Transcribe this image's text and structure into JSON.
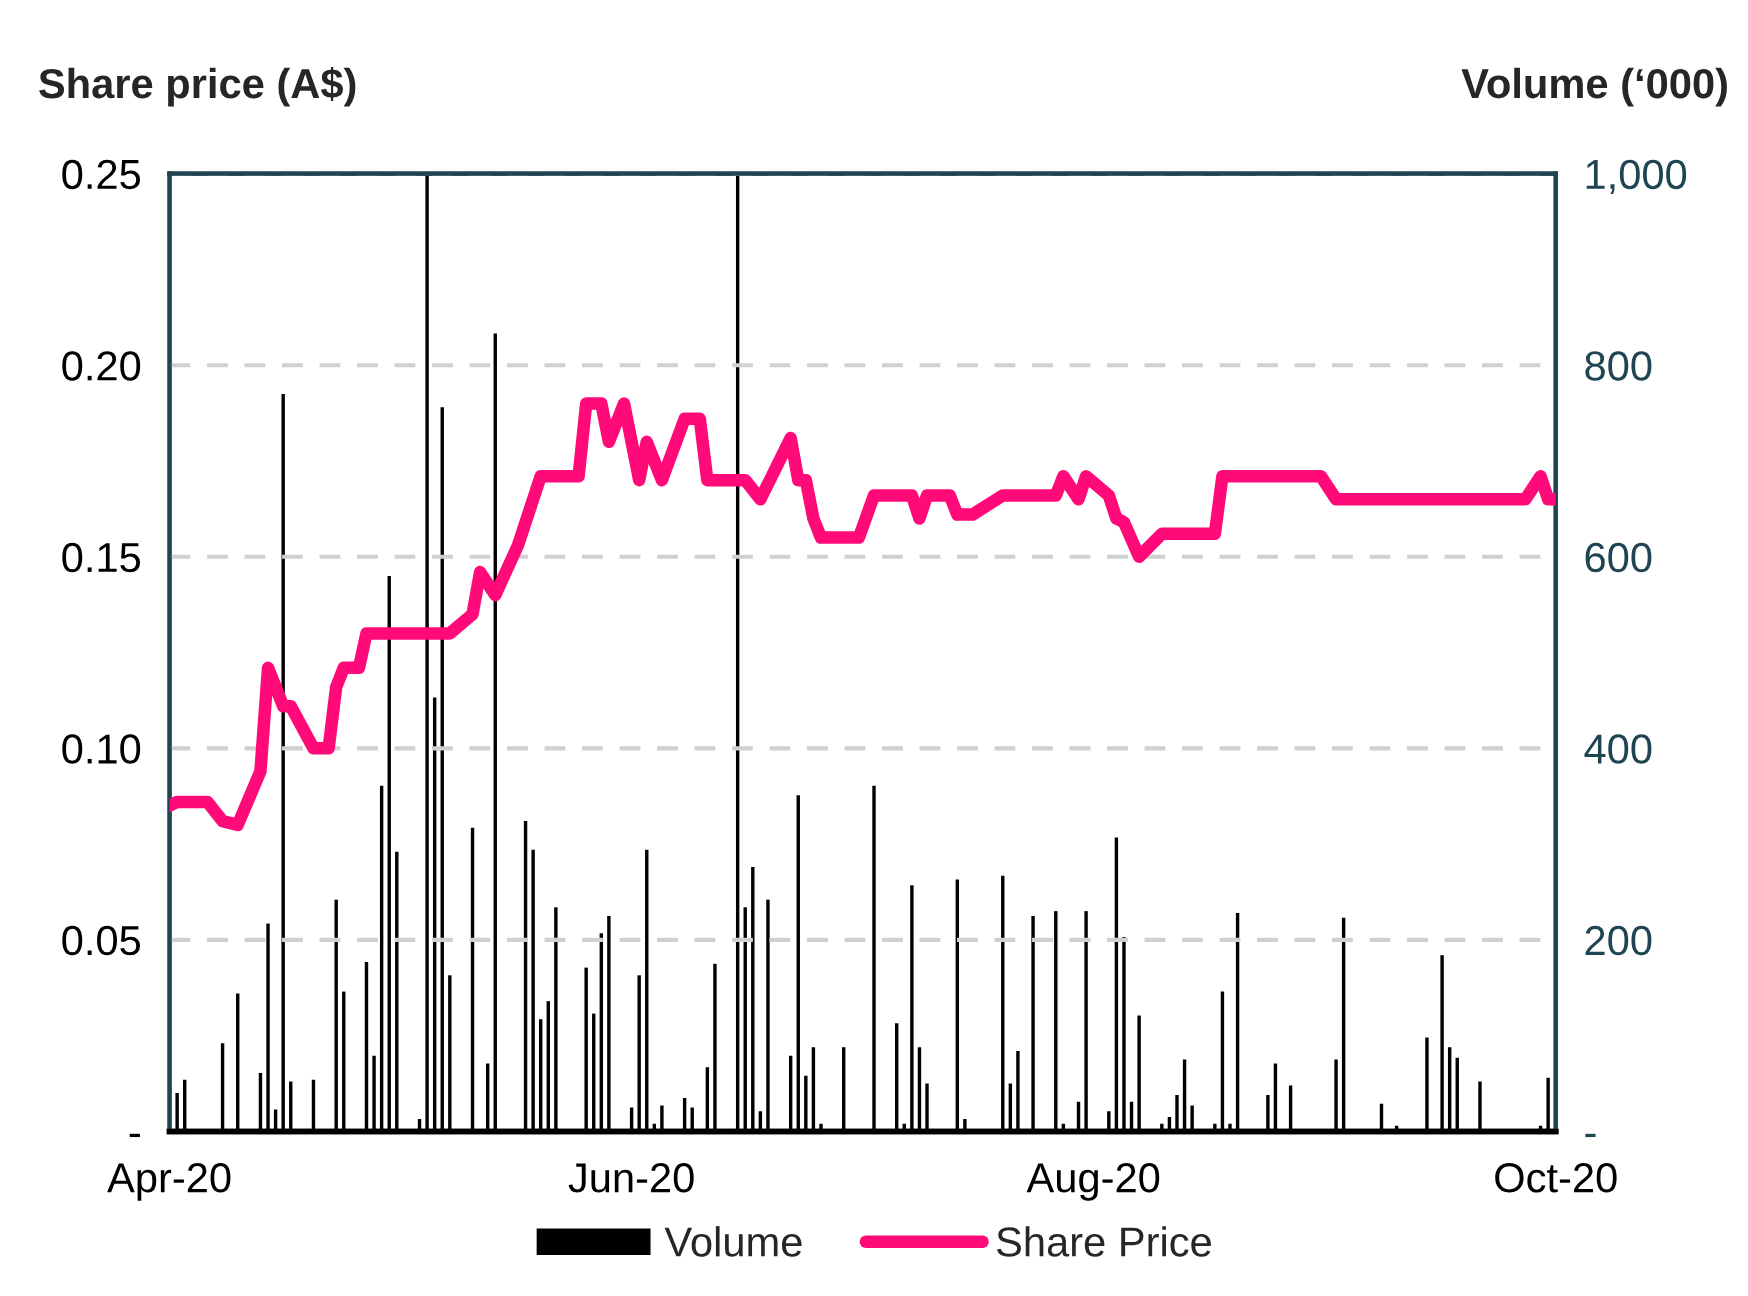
{
  "chart_data": {
    "type": "line",
    "ylabel": "Share price (A$)",
    "y2label": "Volume (‘000)",
    "xlim": [
      "2020-04-01",
      "2020-10-01"
    ],
    "xticks": [
      {
        "value": "2020-04-01",
        "label": "Apr-20"
      },
      {
        "value": "2020-06-01",
        "label": "Jun-20"
      },
      {
        "value": "2020-08-01",
        "label": "Aug-20"
      },
      {
        "value": "2020-10-01",
        "label": "Oct-20"
      }
    ],
    "ylim": [
      0,
      0.25
    ],
    "yticks": [
      {
        "value": 0,
        "label": "-"
      },
      {
        "value": 0.05,
        "label": "0.05"
      },
      {
        "value": 0.1,
        "label": "0.10"
      },
      {
        "value": 0.15,
        "label": "0.15"
      },
      {
        "value": 0.2,
        "label": "0.20"
      },
      {
        "value": 0.25,
        "label": "0.25"
      }
    ],
    "y2lim": [
      0,
      1000
    ],
    "y2ticks": [
      {
        "value": 0,
        "label": "-"
      },
      200,
      400,
      600,
      800,
      {
        "value": 1000,
        "label": "1,000"
      }
    ],
    "grid": "y",
    "legend": "bottom",
    "line_style": "solid",
    "series": [
      {
        "name": "Volume",
        "type": "bar",
        "axis": "y2",
        "color": "#000000",
        "x": [
          "2020-04-02",
          "2020-04-03",
          "2020-04-08",
          "2020-04-10",
          "2020-04-13",
          "2020-04-14",
          "2020-04-15",
          "2020-04-16",
          "2020-04-17",
          "2020-04-20",
          "2020-04-23",
          "2020-04-24",
          "2020-04-27",
          "2020-04-28",
          "2020-04-29",
          "2020-04-30",
          "2020-05-01",
          "2020-05-04",
          "2020-05-05",
          "2020-05-06",
          "2020-05-07",
          "2020-05-08",
          "2020-05-11",
          "2020-05-13",
          "2020-05-14",
          "2020-05-18",
          "2020-05-19",
          "2020-05-20",
          "2020-05-21",
          "2020-05-22",
          "2020-05-26",
          "2020-05-27",
          "2020-05-28",
          "2020-05-29",
          "2020-06-01",
          "2020-06-02",
          "2020-06-03",
          "2020-06-04",
          "2020-06-05",
          "2020-06-08",
          "2020-06-09",
          "2020-06-11",
          "2020-06-12",
          "2020-06-15",
          "2020-06-16",
          "2020-06-17",
          "2020-06-18",
          "2020-06-19",
          "2020-06-22",
          "2020-06-23",
          "2020-06-24",
          "2020-06-25",
          "2020-06-26",
          "2020-06-29",
          "2020-07-03",
          "2020-07-06",
          "2020-07-07",
          "2020-07-08",
          "2020-07-09",
          "2020-07-10",
          "2020-07-14",
          "2020-07-15",
          "2020-07-20",
          "2020-07-21",
          "2020-07-22",
          "2020-07-24",
          "2020-07-27",
          "2020-07-28",
          "2020-07-30",
          "2020-07-31",
          "2020-08-03",
          "2020-08-04",
          "2020-08-05",
          "2020-08-06",
          "2020-08-07",
          "2020-08-10",
          "2020-08-11",
          "2020-08-12",
          "2020-08-13",
          "2020-08-14",
          "2020-08-17",
          "2020-08-18",
          "2020-08-19",
          "2020-08-20",
          "2020-08-24",
          "2020-08-25",
          "2020-08-27",
          "2020-09-02",
          "2020-09-03",
          "2020-09-08",
          "2020-09-10",
          "2020-09-14",
          "2020-09-16",
          "2020-09-17",
          "2020-09-18",
          "2020-09-21",
          "2020-09-29",
          "2020-09-30"
        ],
        "values": [
          40,
          54,
          92,
          144,
          61,
          217,
          23,
          770,
          52,
          54,
          242,
          146,
          177,
          79,
          361,
          580,
          292,
          13,
          1000,
          453,
          756,
          163,
          317,
          71,
          833,
          324,
          294,
          117,
          136,
          234,
          171,
          123,
          207,
          225,
          25,
          163,
          294,
          8,
          27,
          35,
          25,
          67,
          175,
          1000,
          234,
          276,
          21,
          242,
          79,
          351,
          58,
          88,
          8,
          88,
          361,
          113,
          8,
          257,
          88,
          50,
          263,
          13,
          267,
          50,
          84,
          225,
          230,
          8,
          31,
          230,
          21,
          307,
          203,
          31,
          121,
          8,
          15,
          38,
          75,
          27,
          8,
          146,
          8,
          228,
          38,
          71,
          48,
          75,
          223,
          29,
          6,
          98,
          184,
          88,
          77,
          52,
          6,
          56
        ]
      },
      {
        "name": "Share Price",
        "color": "#ff0a78",
        "x": [
          "2020-04-01",
          "2020-04-02",
          "2020-04-06",
          "2020-04-08",
          "2020-04-10",
          "2020-04-13",
          "2020-04-14",
          "2020-04-16",
          "2020-04-17",
          "2020-04-20",
          "2020-04-22",
          "2020-04-23",
          "2020-04-24",
          "2020-04-26",
          "2020-04-27",
          "2020-05-08",
          "2020-05-11",
          "2020-05-12",
          "2020-05-14",
          "2020-05-17",
          "2020-05-20",
          "2020-05-25",
          "2020-05-26",
          "2020-05-28",
          "2020-05-29",
          "2020-05-31",
          "2020-06-02",
          "2020-06-03",
          "2020-06-05",
          "2020-06-08",
          "2020-06-10",
          "2020-06-11",
          "2020-06-16",
          "2020-06-18",
          "2020-06-22",
          "2020-06-23",
          "2020-06-24",
          "2020-06-25",
          "2020-06-26",
          "2020-07-01",
          "2020-07-03",
          "2020-07-08",
          "2020-07-09",
          "2020-07-10",
          "2020-07-13",
          "2020-07-14",
          "2020-07-16",
          "2020-07-20",
          "2020-07-27",
          "2020-07-28",
          "2020-07-30",
          "2020-07-31",
          "2020-08-03",
          "2020-08-04",
          "2020-08-05",
          "2020-08-07",
          "2020-08-10",
          "2020-08-17",
          "2020-08-18",
          "2020-08-31",
          "2020-09-02",
          "2020-09-27",
          "2020-09-29",
          "2020-09-30",
          "2020-10-01"
        ],
        "values": [
          0.085,
          0.086,
          0.086,
          0.081,
          0.08,
          0.094,
          0.121,
          0.111,
          0.111,
          0.1,
          0.1,
          0.116,
          0.121,
          0.121,
          0.13,
          0.13,
          0.135,
          0.146,
          0.14,
          0.153,
          0.171,
          0.171,
          0.19,
          0.19,
          0.18,
          0.19,
          0.17,
          0.18,
          0.17,
          0.186,
          0.186,
          0.17,
          0.17,
          0.165,
          0.181,
          0.17,
          0.17,
          0.16,
          0.155,
          0.155,
          0.166,
          0.166,
          0.16,
          0.166,
          0.166,
          0.161,
          0.161,
          0.166,
          0.166,
          0.171,
          0.165,
          0.171,
          0.166,
          0.16,
          0.159,
          0.15,
          0.156,
          0.156,
          0.171,
          0.171,
          0.165,
          0.165,
          0.171,
          0.165,
          0.165
        ]
      }
    ]
  }
}
